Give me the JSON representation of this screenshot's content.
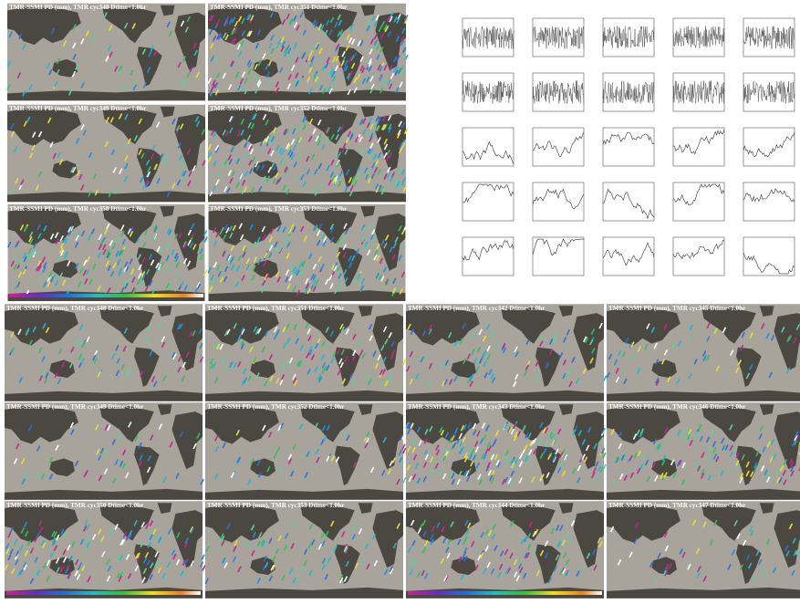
{
  "top_panels": [
    {
      "title": "TMR-SSMI PD (mm), TMR cyc348 Dtime<1.0hr"
    },
    {
      "title": "TMR-SSMI PD (mm), TMR cyc351 Dtime<1.0hr"
    },
    {
      "title": "TMR-SSMI PD (mm), TMR cyc349 Dtime<1.0hr"
    },
    {
      "title": "TMR-SSMI PD (mm), TMR cyc352 Dtime<1.0hr"
    },
    {
      "title": "TMR-SSMI PD (mm), TMR cyc350 Dtime<1.0hr"
    },
    {
      "title": "TMR-SSMI PD (mm), TMR cyc353 Dtime<1.0hr"
    }
  ],
  "bottom_panels": [
    {
      "title": "TMR-SSMI PD (mm), TMR cyc348 Dtime<1.0hr"
    },
    {
      "title": "TMR-SSMI PD (mm), TMR cyc351 Dtime<1.0hr"
    },
    {
      "title": "TMR-SSMI PD (mm), TMR cyc342 Dtime<1.0hr"
    },
    {
      "title": "TMR-SSMI PD (mm), TMR cyc345 Dtime<1.0hr"
    },
    {
      "title": "TMR-SSMI PD (mm), TMR cyc349 Dtime<1.0hr"
    },
    {
      "title": "TMR-SSMI PD (mm), TMR cyc352 Dtime<1.0hr"
    },
    {
      "title": "TMR-SSMI PD (mm), TMR cyc343 Dtime<1.0hr"
    },
    {
      "title": "TMR-SSMI PD (mm), TMR cyc346 Dtime<1.0hr"
    },
    {
      "title": "TMR-SSMI PD (mm), TMR cyc350 Dtime<1.0hr"
    },
    {
      "title": "TMR-SSMI PD (mm), TMR cyc353 Dtime<1.0hr"
    },
    {
      "title": "TMR-SSMI PD (mm), TMR cyc344 Dtime<1.0hr"
    },
    {
      "title": "TMR-SSMI PD (mm), TMR cyc347 Dtime<1.0hr"
    }
  ]
}
